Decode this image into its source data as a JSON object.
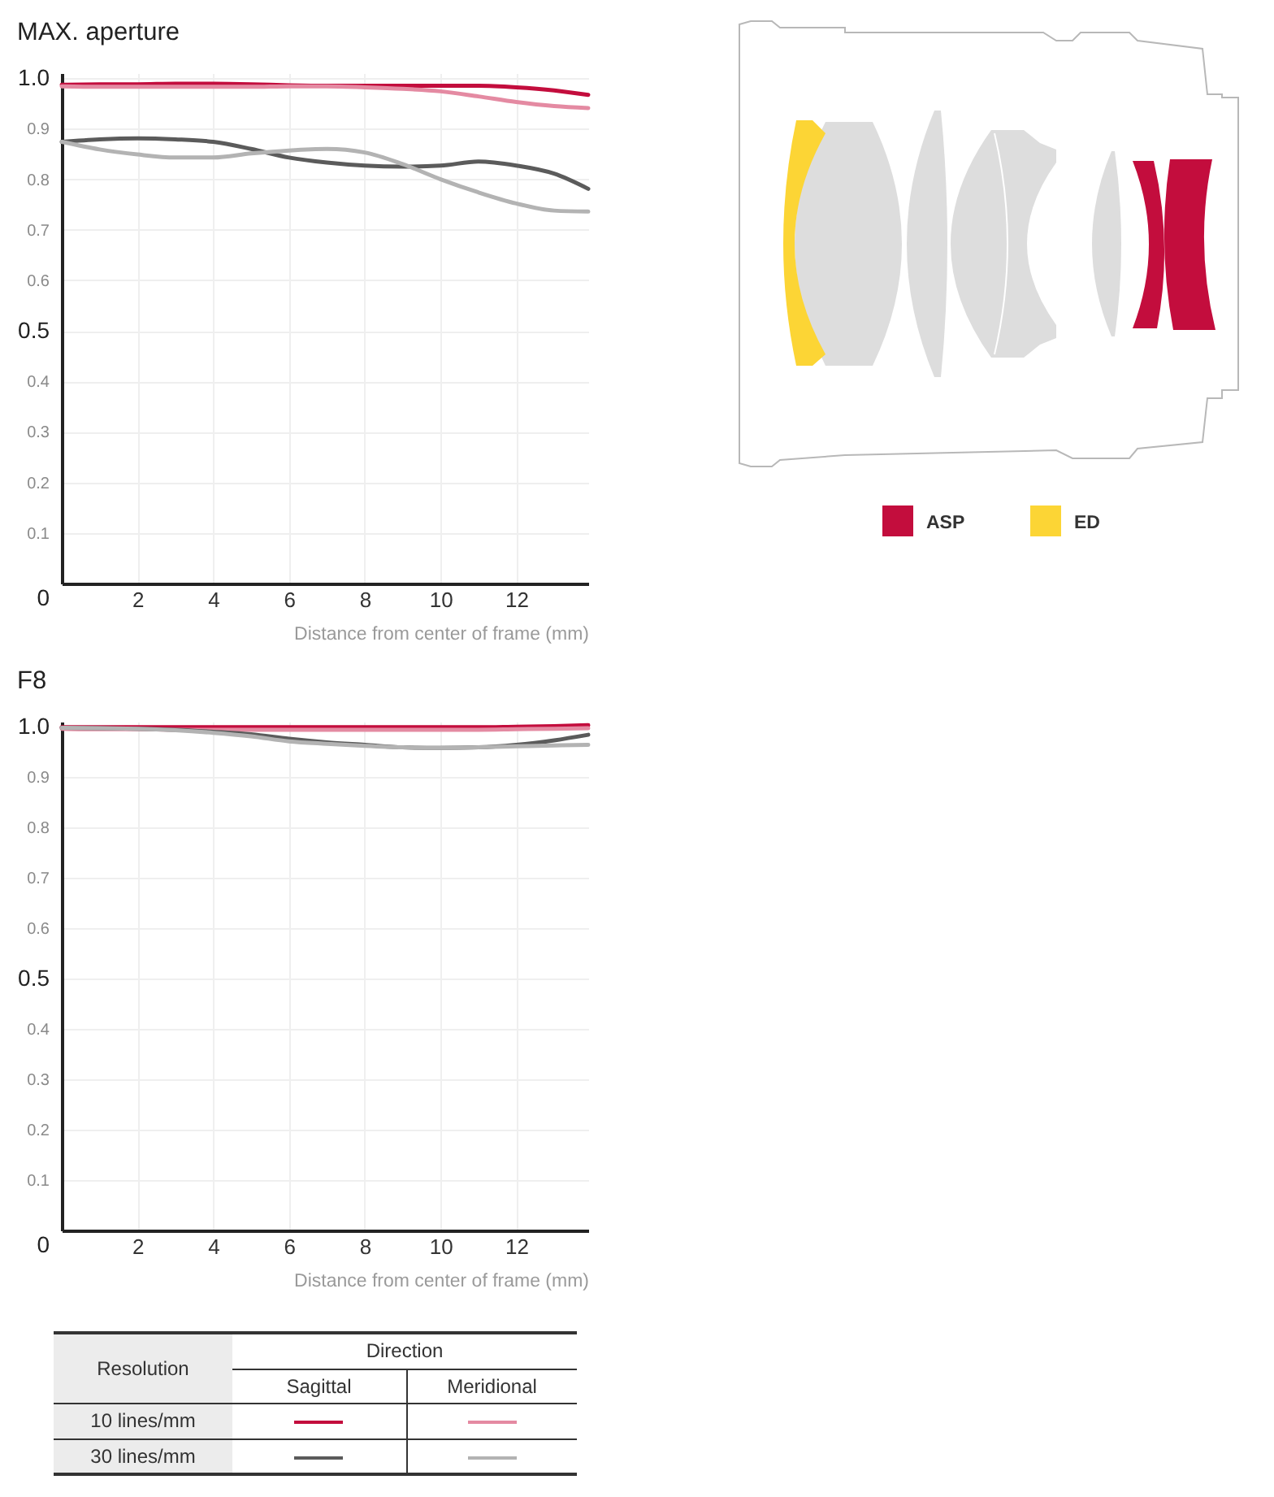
{
  "chart_data": [
    {
      "type": "line",
      "title": "MAX. aperture",
      "xlabel": "Distance from center of frame (mm)",
      "x": [
        0,
        1,
        2,
        3,
        4,
        5,
        6,
        7,
        8,
        9,
        10,
        11,
        12,
        13,
        13.9
      ],
      "series": [
        {
          "color": "#c30d3d",
          "values": [
            0.987,
            0.988,
            0.988,
            0.989,
            0.989,
            0.988,
            0.986,
            0.985,
            0.985,
            0.985,
            0.985,
            0.985,
            0.982,
            0.976,
            0.967
          ]
        },
        {
          "color": "#e48aa2",
          "values": [
            0.984,
            0.983,
            0.983,
            0.983,
            0.983,
            0.983,
            0.984,
            0.984,
            0.982,
            0.979,
            0.974,
            0.964,
            0.953,
            0.945,
            0.941
          ]
        },
        {
          "color": "#5b5b5b",
          "values": [
            0.874,
            0.879,
            0.881,
            0.879,
            0.874,
            0.86,
            0.843,
            0.833,
            0.827,
            0.825,
            0.827,
            0.835,
            0.827,
            0.811,
            0.781
          ]
        },
        {
          "color": "#b3b3b3",
          "values": [
            0.874,
            0.859,
            0.849,
            0.843,
            0.843,
            0.851,
            0.857,
            0.86,
            0.853,
            0.83,
            0.8,
            0.774,
            0.752,
            0.738,
            0.736
          ]
        }
      ],
      "xlim": [
        0,
        13.9
      ],
      "xticks": [
        2,
        4,
        6,
        8,
        10,
        12
      ],
      "ylim": [
        0,
        1.01
      ],
      "yticks": [
        0,
        0.1,
        0.2,
        0.3,
        0.4,
        0.5,
        0.6,
        0.7,
        0.8,
        0.9,
        {
          "value": 1,
          "label": "1.0"
        }
      ],
      "grid": true
    },
    {
      "type": "other",
      "annotations": [
        "ASP",
        "ED"
      ]
    },
    {
      "type": "line",
      "title": "F8",
      "xlabel": "Distance from center of frame (mm)",
      "x": [
        0,
        1,
        2,
        3,
        4,
        5,
        6,
        7,
        8,
        9,
        10,
        11,
        12,
        13,
        13.9
      ],
      "series": [
        {
          "color": "#c30d3d",
          "values": [
            0.999,
            0.999,
            0.999,
            0.999,
            0.999,
            0.999,
            0.999,
            0.999,
            0.999,
            0.999,
            0.999,
            0.999,
            1.0,
            1.001,
            1.003
          ]
        },
        {
          "color": "#e48aa2",
          "values": [
            0.996,
            0.995,
            0.995,
            0.994,
            0.994,
            0.994,
            0.994,
            0.994,
            0.994,
            0.994,
            0.994,
            0.994,
            0.995,
            0.996,
            0.997
          ]
        },
        {
          "color": "#5b5b5b",
          "values": [
            0.998,
            0.997,
            0.996,
            0.994,
            0.99,
            0.985,
            0.976,
            0.969,
            0.964,
            0.959,
            0.958,
            0.959,
            0.964,
            0.973,
            0.984
          ]
        },
        {
          "color": "#b3b3b3",
          "values": [
            0.998,
            0.997,
            0.996,
            0.993,
            0.988,
            0.981,
            0.971,
            0.966,
            0.962,
            0.959,
            0.958,
            0.959,
            0.961,
            0.963,
            0.964
          ]
        }
      ],
      "xlim": [
        0,
        13.9
      ],
      "xticks": [
        2,
        4,
        6,
        8,
        10,
        12
      ],
      "ylim": [
        0,
        1.01
      ],
      "yticks": [
        0,
        0.1,
        0.2,
        0.3,
        0.4,
        0.5,
        0.6,
        0.7,
        0.8,
        0.9,
        {
          "value": 1,
          "label": "1.0"
        }
      ],
      "grid": true,
      "annotations": [
        "Resolution",
        "Direction",
        "Sagittal",
        "Meridional",
        "10 lines/mm",
        "30 lines/mm"
      ]
    }
  ]
}
